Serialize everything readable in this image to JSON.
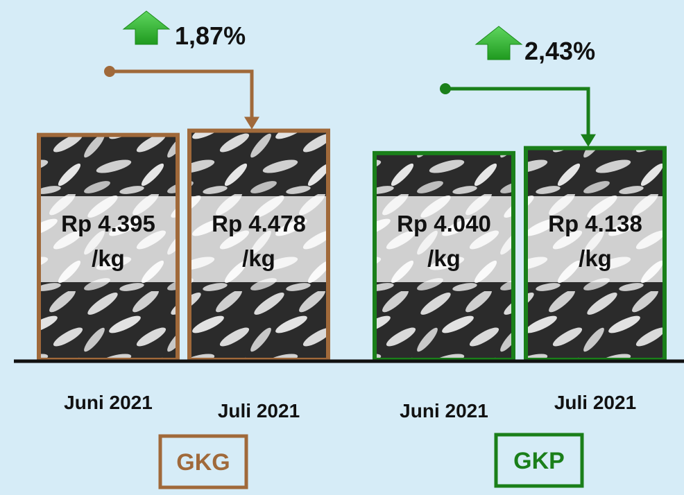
{
  "colors": {
    "background": "#d6ecf7",
    "gkg": "#a0693a",
    "gkp": "#1a7f1a",
    "arrow_up": "#2fb52f",
    "axis": "#111111"
  },
  "chart_data": {
    "type": "bar",
    "title": "",
    "unit": "Rp/kg",
    "groups": [
      {
        "name": "GKG",
        "color_key": "gkg",
        "change_percent": "1,87%",
        "change_direction": "up",
        "bars": [
          {
            "category": "Juni 2021",
            "value": 4395,
            "label_line1": "Rp 4.395",
            "label_line2": "/kg"
          },
          {
            "category": "Juli 2021",
            "value": 4478,
            "label_line1": "Rp 4.478",
            "label_line2": "/kg"
          }
        ]
      },
      {
        "name": "GKP",
        "color_key": "gkp",
        "change_percent": "2,43%",
        "change_direction": "up",
        "bars": [
          {
            "category": "Juni 2021",
            "value": 4040,
            "label_line1": "Rp 4.040",
            "label_line2": "/kg"
          },
          {
            "category": "Juli 2021",
            "value": 4138,
            "label_line1": "Rp 4.138",
            "label_line2": "/kg"
          }
        ]
      }
    ]
  }
}
